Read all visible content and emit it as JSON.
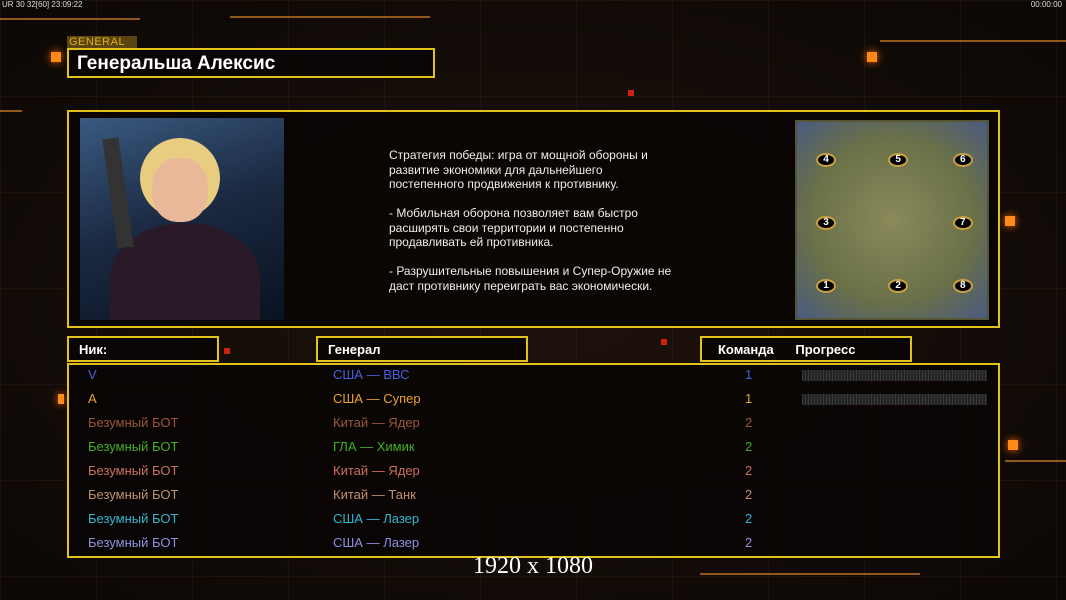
{
  "hud": {
    "fps": "UR 30 32[60] 23:09:22",
    "clock": "00:00:00"
  },
  "header": {
    "tag": "GENERAL",
    "title": "Генеральша Алексис"
  },
  "description": "Стратегия победы: игра от мощной обороны и\n развитие экономики для дальнейшего\n постепенного продвижения к противнику.\n\n- Мобильная оборона позволяет вам быстро\n расширять свои территории и постепенно\n продавливать ей противника.\n\n- Разрушительные повышения и Супер-Оружие не\n даст противнику переиграть вас экономически.",
  "map": {
    "spots": [
      "1",
      "2",
      "3",
      "4",
      "5",
      "6",
      "7",
      "8"
    ]
  },
  "columns": {
    "nick": "Ник:",
    "general": "Генерал",
    "team": "Команда",
    "progress": "Прогресс"
  },
  "players": [
    {
      "nick": "V",
      "general": "США — ВВС",
      "team": "1",
      "color": "#4a5fe0",
      "progress": 0
    },
    {
      "nick": "A",
      "general": "США — Супер",
      "team": "1",
      "color": "#e8a030",
      "progress": 0
    },
    {
      "nick": "Безумный БОТ",
      "general": "Китай — Ядер",
      "team": "2",
      "color": "#9a5838"
    },
    {
      "nick": "Безумный БОТ",
      "general": "ГЛА — Химик",
      "team": "2",
      "color": "#40b020"
    },
    {
      "nick": "Безумный БОТ",
      "general": "Китай — Ядер",
      "team": "2",
      "color": "#c87060"
    },
    {
      "nick": "Безумный БОТ",
      "general": "Китай — Танк",
      "team": "2",
      "color": "#c09070"
    },
    {
      "nick": "Безумный БОТ",
      "general": "США — Лазер",
      "team": "2",
      "color": "#30b8d0"
    },
    {
      "nick": "Безумный БОТ",
      "general": "США — Лазер",
      "team": "2",
      "color": "#9090e0"
    }
  ],
  "resolution": "1920 x 1080",
  "colors": {
    "accent": "#e3c21c",
    "orange": "#ff8a1a"
  }
}
